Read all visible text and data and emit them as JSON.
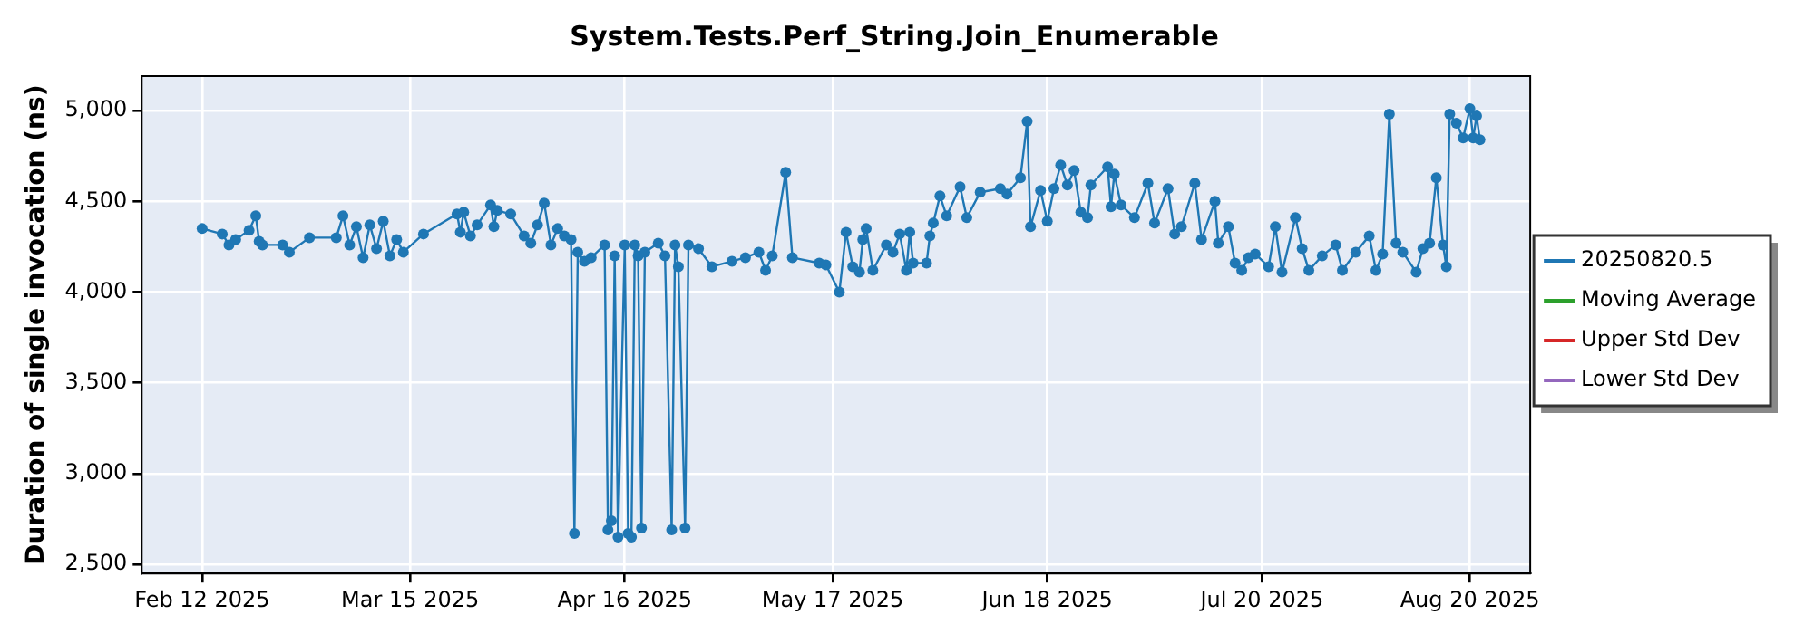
{
  "chart_data": {
    "type": "line",
    "title": "System.Tests.Perf_String.Join_Enumerable",
    "ylabel": "Duration of single invocation (ns)",
    "xlim": [
      "2025-02-03",
      "2025-08-29"
    ],
    "xticks": [
      {
        "value": "2025-02-12",
        "label": "Feb 12 2025"
      },
      {
        "value": "2025-03-15",
        "label": "Mar 15 2025"
      },
      {
        "value": "2025-04-16",
        "label": "Apr 16 2025"
      },
      {
        "value": "2025-05-17",
        "label": "May 17 2025"
      },
      {
        "value": "2025-06-18",
        "label": "Jun 18 2025"
      },
      {
        "value": "2025-07-20",
        "label": "Jul 20 2025"
      },
      {
        "value": "2025-08-20",
        "label": "Aug 20 2025"
      }
    ],
    "ylim": [
      2450,
      5190
    ],
    "yticks": [
      {
        "value": 2500,
        "label": "2,500"
      },
      {
        "value": 3000,
        "label": "3,000"
      },
      {
        "value": 3500,
        "label": "3,500"
      },
      {
        "value": 4000,
        "label": "4,000"
      },
      {
        "value": 4500,
        "label": "4,500"
      },
      {
        "value": 5000,
        "label": "5,000"
      }
    ],
    "grid": true,
    "legend": "right",
    "marker": "circle",
    "line_style": "solid",
    "series": [
      {
        "name": "20250820.5",
        "color": "#1f77b4",
        "x": [
          "2025-02-12",
          "2025-02-15",
          "2025-02-16",
          "2025-02-17",
          "2025-02-19",
          "2025-02-20",
          "2025-02-20T12:00",
          "2025-02-21",
          "2025-02-24",
          "2025-02-25",
          "2025-02-28",
          "2025-03-04",
          "2025-03-05",
          "2025-03-06",
          "2025-03-07",
          "2025-03-08",
          "2025-03-09",
          "2025-03-10",
          "2025-03-11",
          "2025-03-12",
          "2025-03-13",
          "2025-03-14",
          "2025-03-17",
          "2025-03-22",
          "2025-03-22T12:00",
          "2025-03-23",
          "2025-03-24",
          "2025-03-25",
          "2025-03-27",
          "2025-03-27T12:00",
          "2025-03-28",
          "2025-03-30",
          "2025-04-01",
          "2025-04-02",
          "2025-04-03",
          "2025-04-04",
          "2025-04-05",
          "2025-04-06",
          "2025-04-07",
          "2025-04-08",
          "2025-04-08T12:00",
          "2025-04-09",
          "2025-04-10",
          "2025-04-11",
          "2025-04-13",
          "2025-04-13T12:00",
          "2025-04-14",
          "2025-04-14T12:00",
          "2025-04-15",
          "2025-04-16",
          "2025-04-16T12:00",
          "2025-04-17",
          "2025-04-17T12:00",
          "2025-04-18",
          "2025-04-18T12:00",
          "2025-04-19",
          "2025-04-21",
          "2025-04-22",
          "2025-04-23",
          "2025-04-23T12:00",
          "2025-04-24",
          "2025-04-25",
          "2025-04-25T12:00",
          "2025-04-27",
          "2025-04-29",
          "2025-05-02",
          "2025-05-04",
          "2025-05-06",
          "2025-05-07",
          "2025-05-08",
          "2025-05-10",
          "2025-05-11",
          "2025-05-15",
          "2025-05-16",
          "2025-05-18",
          "2025-05-19",
          "2025-05-20",
          "2025-05-21",
          "2025-05-21T12:00",
          "2025-05-22",
          "2025-05-23",
          "2025-05-25",
          "2025-05-26",
          "2025-05-27",
          "2025-05-28",
          "2025-05-28T12:00",
          "2025-05-29",
          "2025-05-31",
          "2025-05-31T12:00",
          "2025-06-01",
          "2025-06-02",
          "2025-06-03",
          "2025-06-05",
          "2025-06-06",
          "2025-06-08",
          "2025-06-11",
          "2025-06-12",
          "2025-06-14",
          "2025-06-15",
          "2025-06-15T12:00",
          "2025-06-17",
          "2025-06-18",
          "2025-06-19",
          "2025-06-20",
          "2025-06-21",
          "2025-06-22",
          "2025-06-23",
          "2025-06-24",
          "2025-06-24T12:00",
          "2025-06-27",
          "2025-06-27T12:00",
          "2025-06-28",
          "2025-06-29",
          "2025-07-01",
          "2025-07-03",
          "2025-07-04",
          "2025-07-06",
          "2025-07-07",
          "2025-07-08",
          "2025-07-10",
          "2025-07-11",
          "2025-07-13",
          "2025-07-13T12:00",
          "2025-07-15",
          "2025-07-16",
          "2025-07-17",
          "2025-07-18",
          "2025-07-19",
          "2025-07-21",
          "2025-07-22",
          "2025-07-23",
          "2025-07-25",
          "2025-07-26",
          "2025-07-27",
          "2025-07-29",
          "2025-07-31",
          "2025-08-01",
          "2025-08-03",
          "2025-08-05",
          "2025-08-06",
          "2025-08-07",
          "2025-08-08",
          "2025-08-09",
          "2025-08-10",
          "2025-08-12",
          "2025-08-13",
          "2025-08-14",
          "2025-08-15",
          "2025-08-16",
          "2025-08-16T12:00",
          "2025-08-17",
          "2025-08-18",
          "2025-08-19",
          "2025-08-20",
          "2025-08-20T12:00",
          "2025-08-21",
          "2025-08-21T12:00"
        ],
        "values": [
          4350,
          4320,
          4260,
          4290,
          4340,
          4420,
          4280,
          4260,
          4260,
          4220,
          4300,
          4300,
          4420,
          4260,
          4360,
          4190,
          4370,
          4240,
          4390,
          4200,
          4290,
          4220,
          4320,
          4430,
          4330,
          4440,
          4310,
          4370,
          4480,
          4360,
          4450,
          4430,
          4310,
          4270,
          4370,
          4490,
          4260,
          4350,
          4310,
          4290,
          2670,
          4220,
          4170,
          4190,
          4260,
          2690,
          2740,
          4200,
          2650,
          4260,
          2670,
          2650,
          4260,
          4200,
          2700,
          4220,
          4270,
          4200,
          2690,
          4260,
          4140,
          2700,
          4260,
          4240,
          4140,
          4170,
          4190,
          4220,
          4120,
          4200,
          4660,
          4190,
          4160,
          4150,
          4000,
          4330,
          4140,
          4110,
          4290,
          4350,
          4120,
          4260,
          4220,
          4320,
          4120,
          4330,
          4160,
          4160,
          4310,
          4380,
          4530,
          4420,
          4580,
          4410,
          4550,
          4570,
          4540,
          4630,
          4940,
          4360,
          4560,
          4390,
          4570,
          4700,
          4590,
          4670,
          4440,
          4410,
          4590,
          4690,
          4470,
          4650,
          4480,
          4410,
          4600,
          4380,
          4570,
          4320,
          4360,
          4600,
          4290,
          4500,
          4270,
          4360,
          4160,
          4120,
          4190,
          4210,
          4140,
          4360,
          4110,
          4410,
          4240,
          4120,
          4200,
          4260,
          4120,
          4220,
          4310,
          4120,
          4210,
          4980,
          4270,
          4220,
          4110,
          4240,
          4270,
          4630,
          4260,
          4140,
          4980,
          4930,
          4850,
          5010,
          4850,
          4970,
          4840
        ]
      },
      {
        "name": "Moving Average",
        "color": "#2ca02c"
      },
      {
        "name": "Upper Std Dev",
        "color": "#d62728"
      },
      {
        "name": "Lower Std Dev",
        "color": "#9467bd"
      }
    ]
  }
}
